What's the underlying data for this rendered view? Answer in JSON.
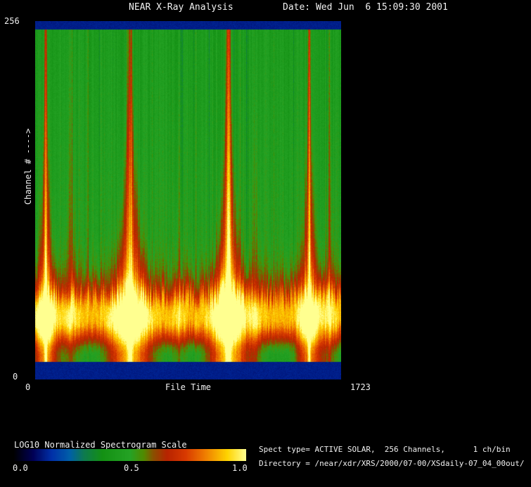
{
  "header": {
    "title": "NEAR X-Ray Analysis",
    "date": "Date: Wed Jun  6 15:09:30 2001"
  },
  "plot": {
    "y_axis": {
      "max": "256",
      "min": "0",
      "title": "Channel # ---->"
    },
    "x_axis": {
      "min": "0",
      "title": "File Time",
      "max": "1723"
    }
  },
  "colorbar": {
    "title": "LOG10 Normalized Spectrogram Scale",
    "ticks": [
      "0.0",
      "0.5",
      "1.0"
    ]
  },
  "info": {
    "spect_type": "Spect type= ACTIVE SOLAR,  256 Channels,      1 ch/bin",
    "directory": "Directory = /near/xdr/XRS/2000/07-00/XSdaily-07_04_00out/"
  },
  "chart_data": {
    "type": "heatmap",
    "title": "NEAR X-Ray Analysis",
    "xlabel": "File Time",
    "ylabel": "Channel #",
    "xlim": [
      0,
      1723
    ],
    "ylim": [
      0,
      256
    ],
    "scale_label": "LOG10 Normalized Spectrogram Scale",
    "scale_range": [
      0.0,
      1.0
    ],
    "channels": 256,
    "ch_per_bin": 1,
    "spect_type": "ACTIVE SOLAR",
    "colormap_stops": [
      [
        0.0,
        "#000004"
      ],
      [
        0.08,
        "#000055"
      ],
      [
        0.16,
        "#0030a8"
      ],
      [
        0.24,
        "#0060a8"
      ],
      [
        0.3,
        "#0e7a50"
      ],
      [
        0.38,
        "#149114"
      ],
      [
        0.5,
        "#25a325"
      ],
      [
        0.56,
        "#528a00"
      ],
      [
        0.6,
        "#8a5000"
      ],
      [
        0.66,
        "#b82400"
      ],
      [
        0.74,
        "#d93a00"
      ],
      [
        0.82,
        "#ef7a00"
      ],
      [
        0.92,
        "#ffd400"
      ],
      [
        1.0,
        "#ffff90"
      ]
    ],
    "profile": [
      [
        0.022,
        0.44
      ],
      [
        0.35,
        0.46
      ],
      [
        0.6,
        0.48
      ],
      [
        0.66,
        0.51
      ],
      [
        0.7,
        0.55
      ],
      [
        0.735,
        0.62
      ],
      [
        0.765,
        0.75
      ],
      [
        0.79,
        0.87
      ],
      [
        0.815,
        0.9
      ],
      [
        0.845,
        0.88
      ],
      [
        0.868,
        0.76
      ],
      [
        0.89,
        0.64
      ],
      [
        0.91,
        0.53
      ],
      [
        0.93,
        0.47
      ],
      [
        0.952,
        0.45
      ]
    ],
    "bands": {
      "top_end": 0.022,
      "bottom_start": 0.952,
      "level": 0.13
    },
    "events": [
      {
        "file_time": 59,
        "x": 0.034,
        "amp": 0.42,
        "width": 0.012,
        "core": 0.26
      },
      {
        "file_time": 534,
        "x": 0.31,
        "amp": 0.46,
        "width": 0.022,
        "core": 0.2
      },
      {
        "file_time": 1089,
        "x": 0.632,
        "amp": 0.5,
        "width": 0.02,
        "core": 0.3
      },
      {
        "file_time": 1546,
        "x": 0.897,
        "amp": 0.38,
        "width": 0.013,
        "core": 0.24
      },
      {
        "file_time": 200,
        "x": 0.116,
        "amp": 0.12,
        "width": 0.01,
        "core": 0.04
      },
      {
        "file_time": 810,
        "x": 0.47,
        "amp": 0.1,
        "width": 0.008,
        "core": 0.03
      },
      {
        "file_time": 1240,
        "x": 0.72,
        "amp": 0.1,
        "width": 0.008,
        "core": 0.05
      },
      {
        "file_time": 1660,
        "x": 0.963,
        "amp": 0.13,
        "width": 0.009,
        "core": 0.06
      }
    ]
  }
}
